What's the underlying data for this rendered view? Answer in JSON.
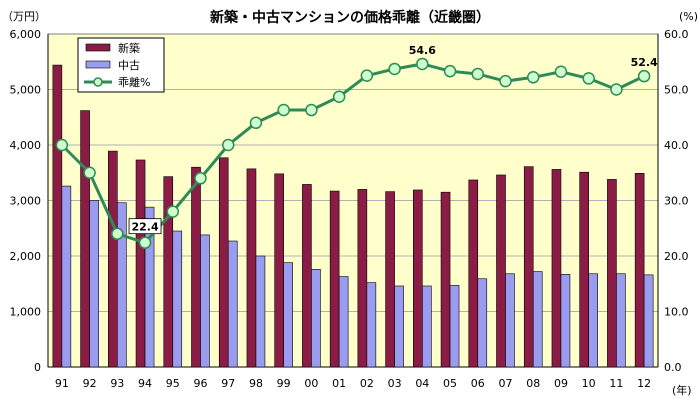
{
  "chart_data": {
    "type": "bar",
    "title": "新築・中古マンションの価格乖離（近畿圏）",
    "left_unit": "（万円）",
    "right_unit": "(%)",
    "x_unit": "(年)",
    "categories": [
      "91",
      "92",
      "93",
      "94",
      "95",
      "96",
      "97",
      "98",
      "99",
      "00",
      "01",
      "02",
      "03",
      "04",
      "05",
      "06",
      "07",
      "08",
      "09",
      "10",
      "11",
      "12"
    ],
    "left_axis": {
      "min": 0,
      "max": 6000,
      "step": 1000,
      "tick_labels": [
        "0",
        "1,000",
        "2,000",
        "3,000",
        "4,000",
        "5,000",
        "6,000"
      ]
    },
    "right_axis": {
      "min": 0,
      "max": 60,
      "step": 10,
      "tick_labels": [
        "0.0",
        "10.0",
        "20.0",
        "30.0",
        "40.0",
        "50.0",
        "60.0"
      ]
    },
    "series": [
      {
        "name": "新築",
        "kind": "bar",
        "axis": "left",
        "color": "#8b1c45",
        "values": [
          5440,
          4620,
          3890,
          3730,
          3430,
          3600,
          3770,
          3570,
          3480,
          3290,
          3170,
          3200,
          3160,
          3190,
          3150,
          3370,
          3460,
          3610,
          3560,
          3510,
          3380,
          3490
        ]
      },
      {
        "name": "中古",
        "kind": "bar",
        "axis": "left",
        "color": "#9a9cf0",
        "values": [
          3260,
          3000,
          2960,
          2880,
          2450,
          2380,
          2270,
          2000,
          1880,
          1760,
          1630,
          1520,
          1460,
          1460,
          1470,
          1590,
          1680,
          1720,
          1670,
          1680,
          1680,
          1660
        ]
      },
      {
        "name": "乖離%",
        "kind": "line",
        "axis": "right",
        "color": "#2e8b57",
        "marker_fill": "#ccffcc",
        "values": [
          40.0,
          35.0,
          24.0,
          22.4,
          28.0,
          34.0,
          40.0,
          44.0,
          46.3,
          46.3,
          48.7,
          52.5,
          53.7,
          54.6,
          53.3,
          52.8,
          51.5,
          52.2,
          53.2,
          52.0,
          50.0,
          52.4
        ]
      }
    ],
    "annotations": [
      {
        "series": "乖離%",
        "category": "94",
        "text": "22.4",
        "boxed": true
      },
      {
        "series": "乖離%",
        "category": "04",
        "text": "54.6",
        "boxed": false
      },
      {
        "series": "乖離%",
        "category": "12",
        "text": "52.4",
        "boxed": false
      }
    ],
    "legend_position": "top-left",
    "plot_background": "#ffffcc",
    "grid": true
  }
}
